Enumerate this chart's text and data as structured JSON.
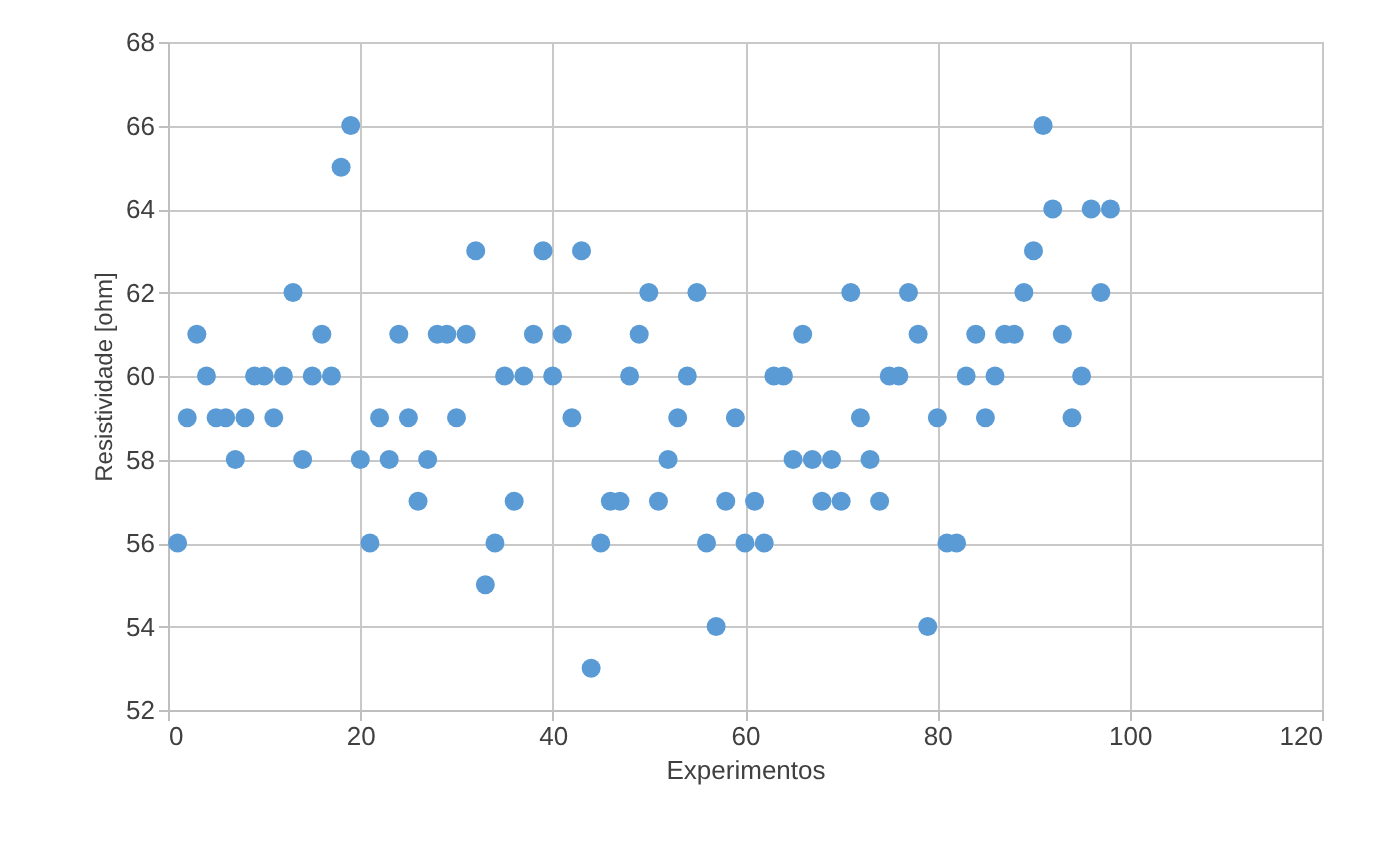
{
  "chart_data": {
    "type": "scatter",
    "xlabel": "Experimentos",
    "ylabel": "Resistividade [ohm]",
    "x": [
      1,
      2,
      3,
      4,
      5,
      6,
      7,
      8,
      9,
      10,
      11,
      12,
      13,
      14,
      15,
      16,
      17,
      18,
      19,
      20,
      21,
      22,
      23,
      24,
      25,
      26,
      27,
      28,
      29,
      30,
      31,
      32,
      33,
      34,
      35,
      36,
      37,
      38,
      39,
      40,
      41,
      42,
      43,
      44,
      45,
      46,
      47,
      48,
      49,
      50,
      51,
      52,
      53,
      54,
      55,
      56,
      57,
      58,
      59,
      60,
      61,
      62,
      63,
      64,
      65,
      66,
      67,
      68,
      69,
      70,
      71,
      72,
      73,
      74,
      75,
      76,
      77,
      78,
      79,
      80,
      81,
      82,
      83,
      84,
      85,
      86,
      87,
      88,
      89,
      90,
      91,
      92,
      93,
      94,
      95,
      96,
      97,
      98
    ],
    "series": [
      {
        "color": "#5b9bd5",
        "values": [
          56,
          59,
          61,
          60,
          59,
          59,
          58,
          59,
          60,
          60,
          59,
          60,
          62,
          58,
          60,
          61,
          60,
          65,
          66,
          58,
          56,
          59,
          58,
          61,
          59,
          57,
          58,
          61,
          61,
          59,
          61,
          63,
          55,
          56,
          60,
          57,
          60,
          61,
          63,
          60,
          61,
          59,
          63,
          53,
          56,
          57,
          57,
          60,
          61,
          62,
          57,
          58,
          59,
          60,
          62,
          56,
          54,
          57,
          59,
          56,
          57,
          56,
          60,
          60,
          58,
          61,
          58,
          57,
          58,
          57,
          62,
          59,
          58,
          57,
          60,
          60,
          62,
          61,
          54,
          59,
          56,
          56,
          60,
          61,
          59,
          60,
          61,
          61,
          62,
          63,
          66,
          64,
          61,
          59,
          60,
          64,
          62,
          64
        ]
      }
    ],
    "xlim": [
      0,
      120
    ],
    "xticks": [
      0,
      20,
      40,
      60,
      80,
      100,
      120
    ],
    "ylim": [
      52,
      68
    ],
    "yticks": [
      52,
      54,
      56,
      58,
      60,
      62,
      64,
      66,
      68
    ],
    "grid": true,
    "marker": "circle"
  }
}
